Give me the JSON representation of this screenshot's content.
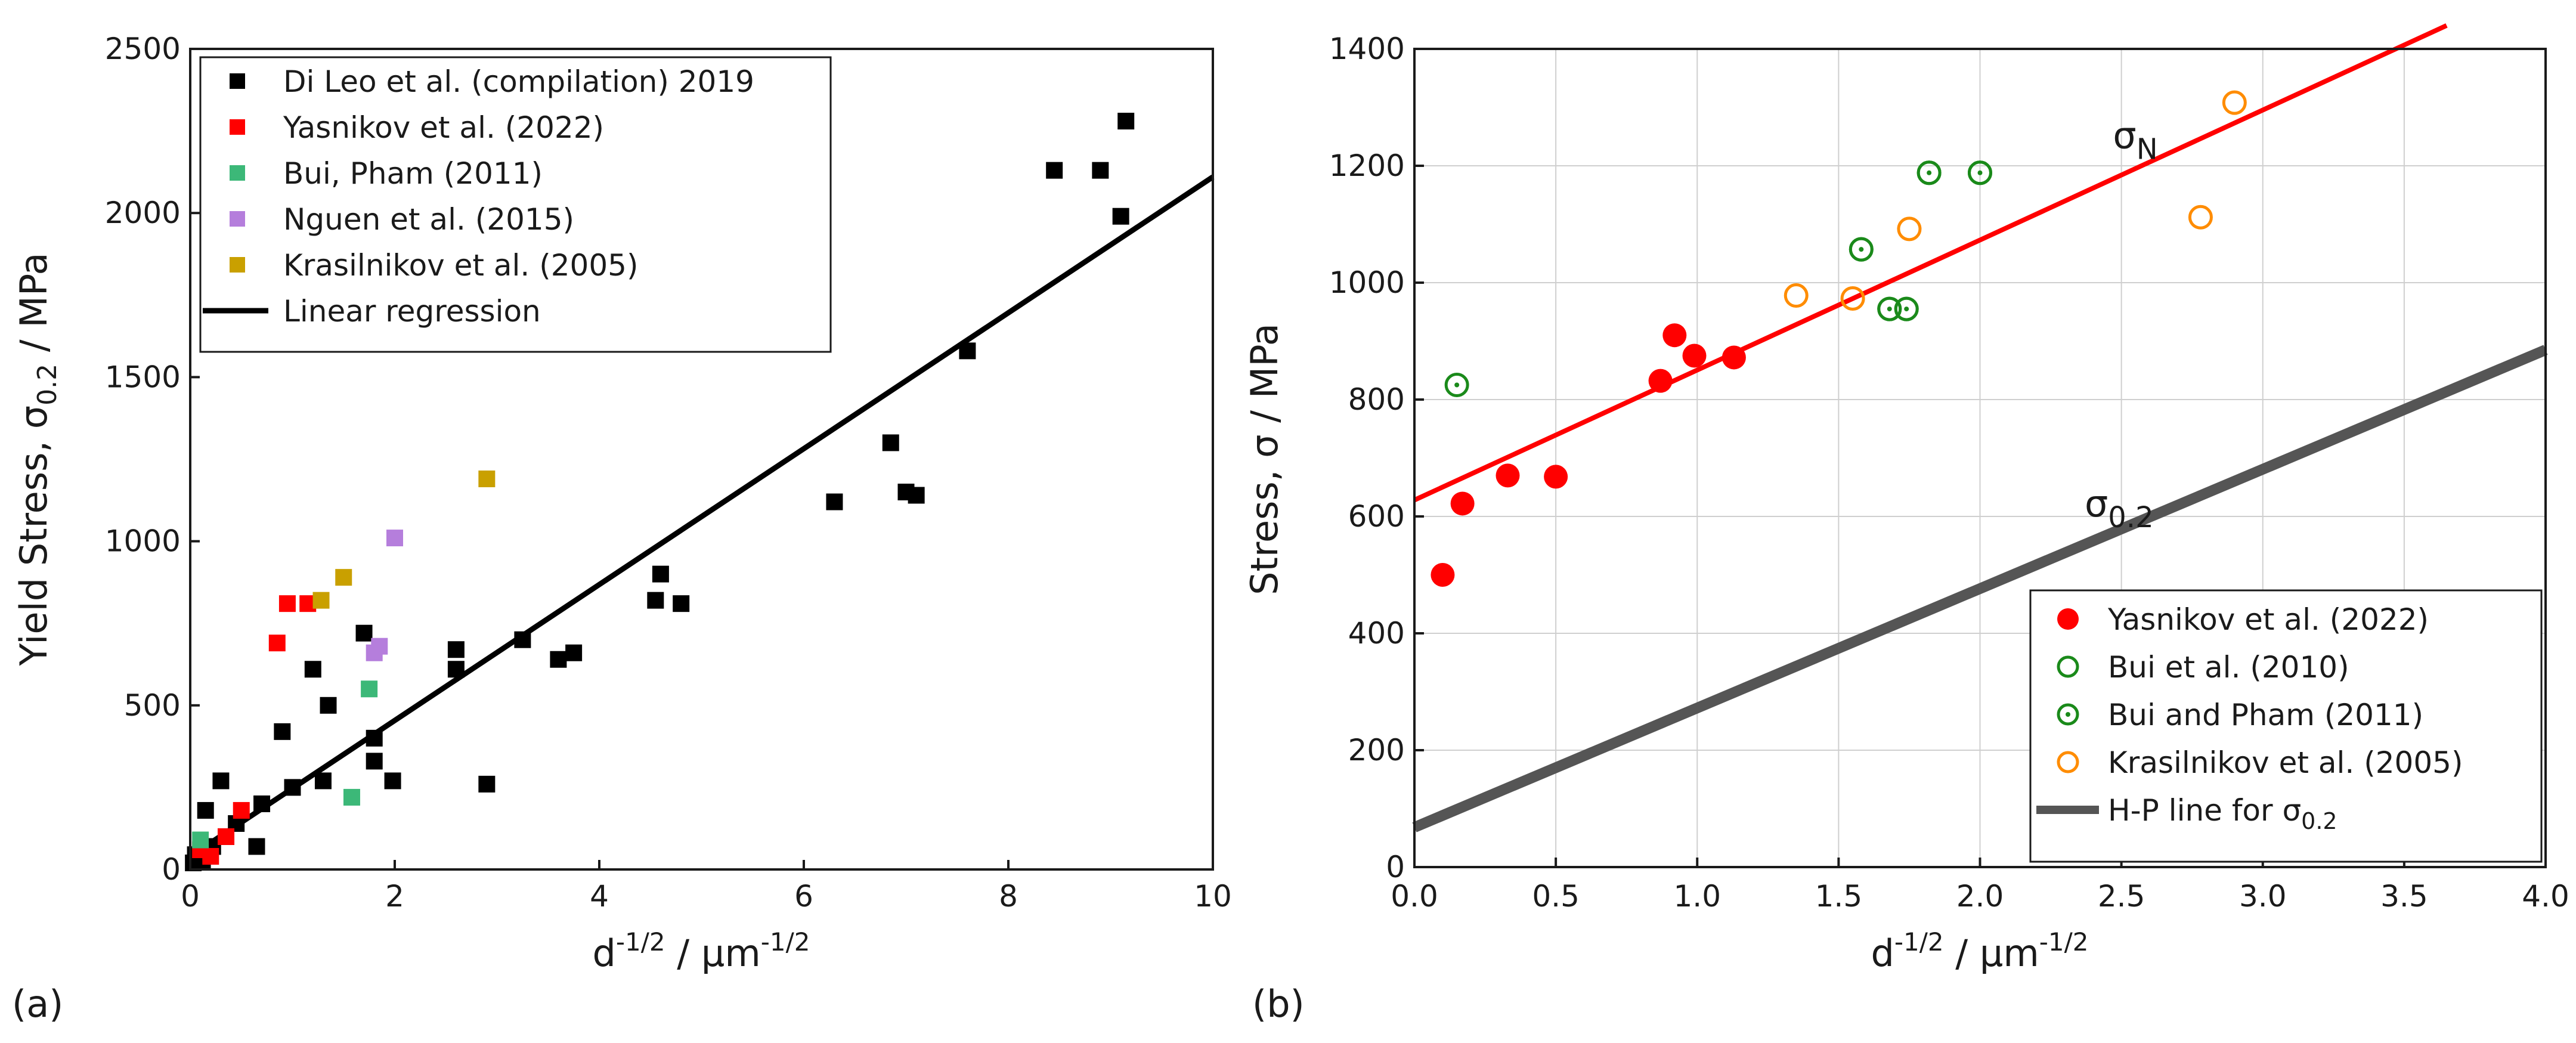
{
  "chart_data": [
    {
      "type": "scatter",
      "panel_label": "(a)",
      "xlabel_base": "d",
      "xlabel_base_exp": "-1/2",
      "xlabel_sep": " / ",
      "xlabel_unit": "μm",
      "xlabel_unit_exp": "-1/2",
      "ylabel_prefix": "Yield Stress, σ",
      "ylabel_sub": "0.2",
      "ylabel_suffix": " / MPa",
      "xlim": [
        0,
        10
      ],
      "ylim": [
        0,
        2500
      ],
      "xticks": [
        0,
        2,
        4,
        6,
        8,
        10
      ],
      "yticks": [
        0,
        500,
        1000,
        1500,
        2000,
        2500
      ],
      "grid": false,
      "legend_position": "top-left",
      "series": [
        {
          "name": "Di Leo et al. (compilation) 2019",
          "color": "#000000",
          "marker": "square",
          "points": [
            [
              0.03,
              20
            ],
            [
              0.05,
              45
            ],
            [
              0.08,
              30
            ],
            [
              0.1,
              60
            ],
            [
              0.12,
              25
            ],
            [
              0.15,
              180
            ],
            [
              0.18,
              50
            ],
            [
              0.22,
              70
            ],
            [
              0.3,
              270
            ],
            [
              0.35,
              100
            ],
            [
              0.45,
              140
            ],
            [
              0.65,
              70
            ],
            [
              0.7,
              200
            ],
            [
              0.9,
              420
            ],
            [
              1.0,
              250
            ],
            [
              1.2,
              610
            ],
            [
              1.3,
              270
            ],
            [
              1.35,
              500
            ],
            [
              1.7,
              720
            ],
            [
              1.8,
              400
            ],
            [
              1.8,
              330
            ],
            [
              1.98,
              270
            ],
            [
              2.6,
              610
            ],
            [
              2.6,
              670
            ],
            [
              2.9,
              260
            ],
            [
              3.25,
              700
            ],
            [
              3.6,
              640
            ],
            [
              3.75,
              660
            ],
            [
              4.55,
              820
            ],
            [
              4.6,
              900
            ],
            [
              4.8,
              810
            ],
            [
              6.3,
              1120
            ],
            [
              6.85,
              1300
            ],
            [
              7.0,
              1150
            ],
            [
              7.1,
              1140
            ],
            [
              7.6,
              1580
            ],
            [
              8.45,
              2130
            ],
            [
              8.9,
              2130
            ],
            [
              9.1,
              1990
            ],
            [
              9.15,
              2280
            ]
          ]
        },
        {
          "name": "Yasnikov et al. (2022)",
          "color": "#ff0000",
          "marker": "square",
          "points": [
            [
              0.1,
              60
            ],
            [
              0.2,
              40
            ],
            [
              0.35,
              100
            ],
            [
              0.5,
              180
            ],
            [
              0.85,
              690
            ],
            [
              0.95,
              810
            ],
            [
              1.15,
              810
            ]
          ]
        },
        {
          "name": "Bui, Pham (2011)",
          "color": "#3cb878",
          "marker": "square",
          "points": [
            [
              0.1,
              90
            ],
            [
              1.58,
              220
            ],
            [
              1.75,
              550
            ]
          ]
        },
        {
          "name": "Nguen et al. (2015)",
          "color": "#b57edc",
          "marker": "square",
          "points": [
            [
              1.8,
              660
            ],
            [
              1.85,
              680
            ],
            [
              2.0,
              1010
            ]
          ]
        },
        {
          "name": "Krasilnikov et al. (2005)",
          "color": "#c9a000",
          "marker": "square",
          "points": [
            [
              1.28,
              820
            ],
            [
              1.5,
              890
            ],
            [
              2.9,
              1190
            ]
          ]
        }
      ],
      "lines": [
        {
          "name": "Linear regression",
          "color": "#000000",
          "x": [
            0,
            10
          ],
          "y": [
            40,
            2110
          ]
        }
      ]
    },
    {
      "type": "scatter",
      "panel_label": "(b)",
      "xlabel_base": "d",
      "xlabel_base_exp": "-1/2",
      "xlabel_sep": " / ",
      "xlabel_unit": "μm",
      "xlabel_unit_exp": "-1/2",
      "ylabel_prefix": "Stress, σ",
      "ylabel_sub": "",
      "ylabel_suffix": " / MPa",
      "xlim": [
        0,
        4
      ],
      "ylim": [
        0,
        1400
      ],
      "xticks": [
        "0.0",
        "0.5",
        "1.0",
        "1.5",
        "2.0",
        "2.5",
        "3.0",
        "3.5",
        "4.0"
      ],
      "yticks": [
        0,
        200,
        400,
        600,
        800,
        1000,
        1200,
        1400
      ],
      "grid": true,
      "legend_position": "bottom-right",
      "series": [
        {
          "name": "Yasnikov et al. (2022)",
          "color": "#ff0000",
          "marker": "filled-circle",
          "points": [
            [
              0.1,
              500
            ],
            [
              0.17,
              622
            ],
            [
              0.33,
              670
            ],
            [
              0.5,
              668
            ],
            [
              0.87,
              832
            ],
            [
              0.92,
              910
            ],
            [
              0.99,
              875
            ],
            [
              1.13,
              872
            ]
          ]
        },
        {
          "name": "Bui et al. (2010)",
          "color": "#1a8a1a",
          "marker": "open-circle",
          "points": [
            [
              1.58,
              1057
            ],
            [
              1.68,
              955
            ],
            [
              1.74,
              955
            ],
            [
              1.82,
              1188
            ],
            [
              2.0,
              1188
            ]
          ]
        },
        {
          "name": "Bui and Pham (2011)",
          "color": "#1a8a1a",
          "marker": "dot-circle",
          "points": [
            [
              0.15,
              825
            ],
            [
              1.58,
              1057
            ],
            [
              1.68,
              955
            ],
            [
              1.74,
              955
            ],
            [
              1.82,
              1188
            ],
            [
              2.0,
              1188
            ]
          ]
        },
        {
          "name": "Krasilnikov et al. (2005)",
          "color": "#ff8c00",
          "marker": "open-circle",
          "points": [
            [
              1.35,
              978
            ],
            [
              1.55,
              973
            ],
            [
              1.75,
              1092
            ],
            [
              2.78,
              1112
            ],
            [
              2.9,
              1308
            ]
          ]
        }
      ],
      "lines": [
        {
          "name": "σN fit",
          "color": "#ff0000",
          "x": [
            0,
            3.65
          ],
          "y": [
            628,
            1440
          ]
        },
        {
          "name": "H-P line for σ0.2",
          "legend_main": "H-P line for σ",
          "legend_sub": "0.2",
          "color": "#555555",
          "x": [
            0,
            4
          ],
          "y": [
            68,
            885
          ]
        }
      ],
      "curve_labels": [
        {
          "main": "σ",
          "sub": "N",
          "x": 2.47,
          "y": 1230
        },
        {
          "main": "σ",
          "sub": "0.2",
          "x": 2.37,
          "y": 600
        }
      ]
    }
  ]
}
